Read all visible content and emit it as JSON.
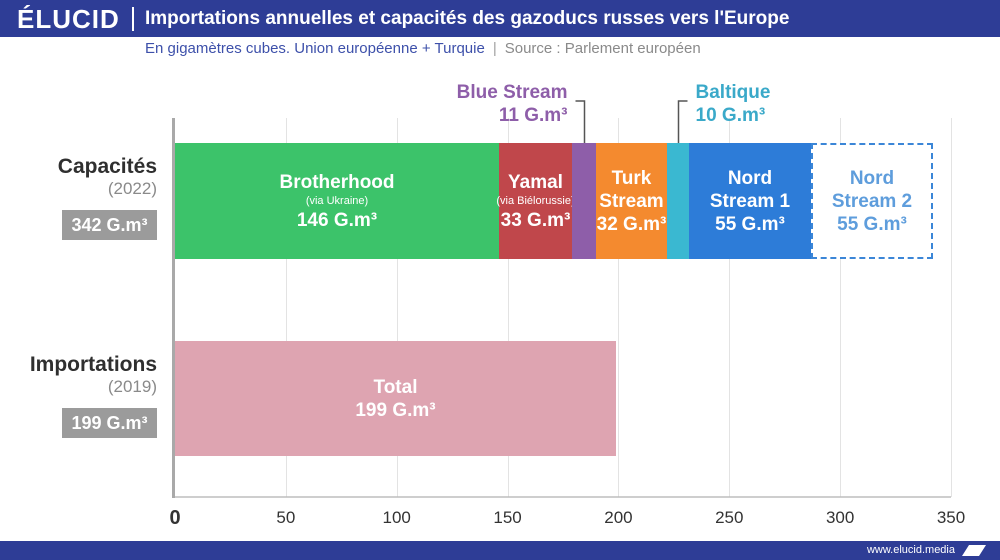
{
  "brand": {
    "logo_text": "ÉLUCID",
    "primary_color": "#2e3d96",
    "site_url": "www.elucid.media"
  },
  "chart_data": {
    "type": "bar",
    "orientation": "horizontal",
    "stacked": true,
    "title": "Importations annuelles et capacités des gazoducs russes vers l'Europe",
    "subtitle": "En gigamètres cubes. Union européenne + Turquie",
    "separator": "|",
    "source": "Source : Parlement européen",
    "xlim": [
      0,
      350
    ],
    "xticks": [
      0,
      50,
      100,
      150,
      200,
      250,
      300,
      350
    ],
    "grid": true,
    "rows": [
      {
        "label": "Capacités",
        "period": "(2022)",
        "total_label": "342 G.m³",
        "segments": [
          {
            "name": "Brotherhood",
            "note": "(via Ukraine)",
            "value": 146,
            "value_label": "146 G.m³",
            "color": "#3cc36a",
            "text_color": "#ffffff",
            "label_position": "inside"
          },
          {
            "name": "Yamal",
            "note": "(via Biélorussie)",
            "value": 33,
            "value_label": "33 G.m³",
            "color": "#c0474b",
            "text_color": "#ffffff",
            "label_position": "inside"
          },
          {
            "name": "Blue Stream",
            "value": 11,
            "value_label": "11 G.m³",
            "color": "#8e5ea9",
            "text_color": "#8e5ea9",
            "label_position": "above-left"
          },
          {
            "name": "Turk Stream",
            "value": 32,
            "value_label": "32 G.m³",
            "color": "#f48a2f",
            "text_color": "#ffffff",
            "label_position": "inside"
          },
          {
            "name": "Baltique",
            "value": 10,
            "value_label": "10 G.m³",
            "color": "#3ab8d1",
            "text_color": "#3aa9c9",
            "label_position": "above-right"
          },
          {
            "name": "Nord Stream 1",
            "value": 55,
            "value_label": "55 G.m³",
            "color": "#2d7cd8",
            "text_color": "#ffffff",
            "label_position": "inside"
          },
          {
            "name": "Nord Stream 2",
            "value": 55,
            "value_label": "55 G.m³",
            "color": "#ffffff",
            "border_color": "#3b86d7",
            "border_style": "dashed",
            "text_color": "#5e9ddc",
            "label_position": "inside"
          }
        ]
      },
      {
        "label": "Importations",
        "period": "(2019)",
        "total_label": "199 G.m³",
        "segments": [
          {
            "name": "Total",
            "value": 199,
            "value_label": "199 G.m³",
            "color": "#dea4b1",
            "text_color": "#ffffff",
            "label_position": "inside"
          }
        ]
      }
    ]
  }
}
